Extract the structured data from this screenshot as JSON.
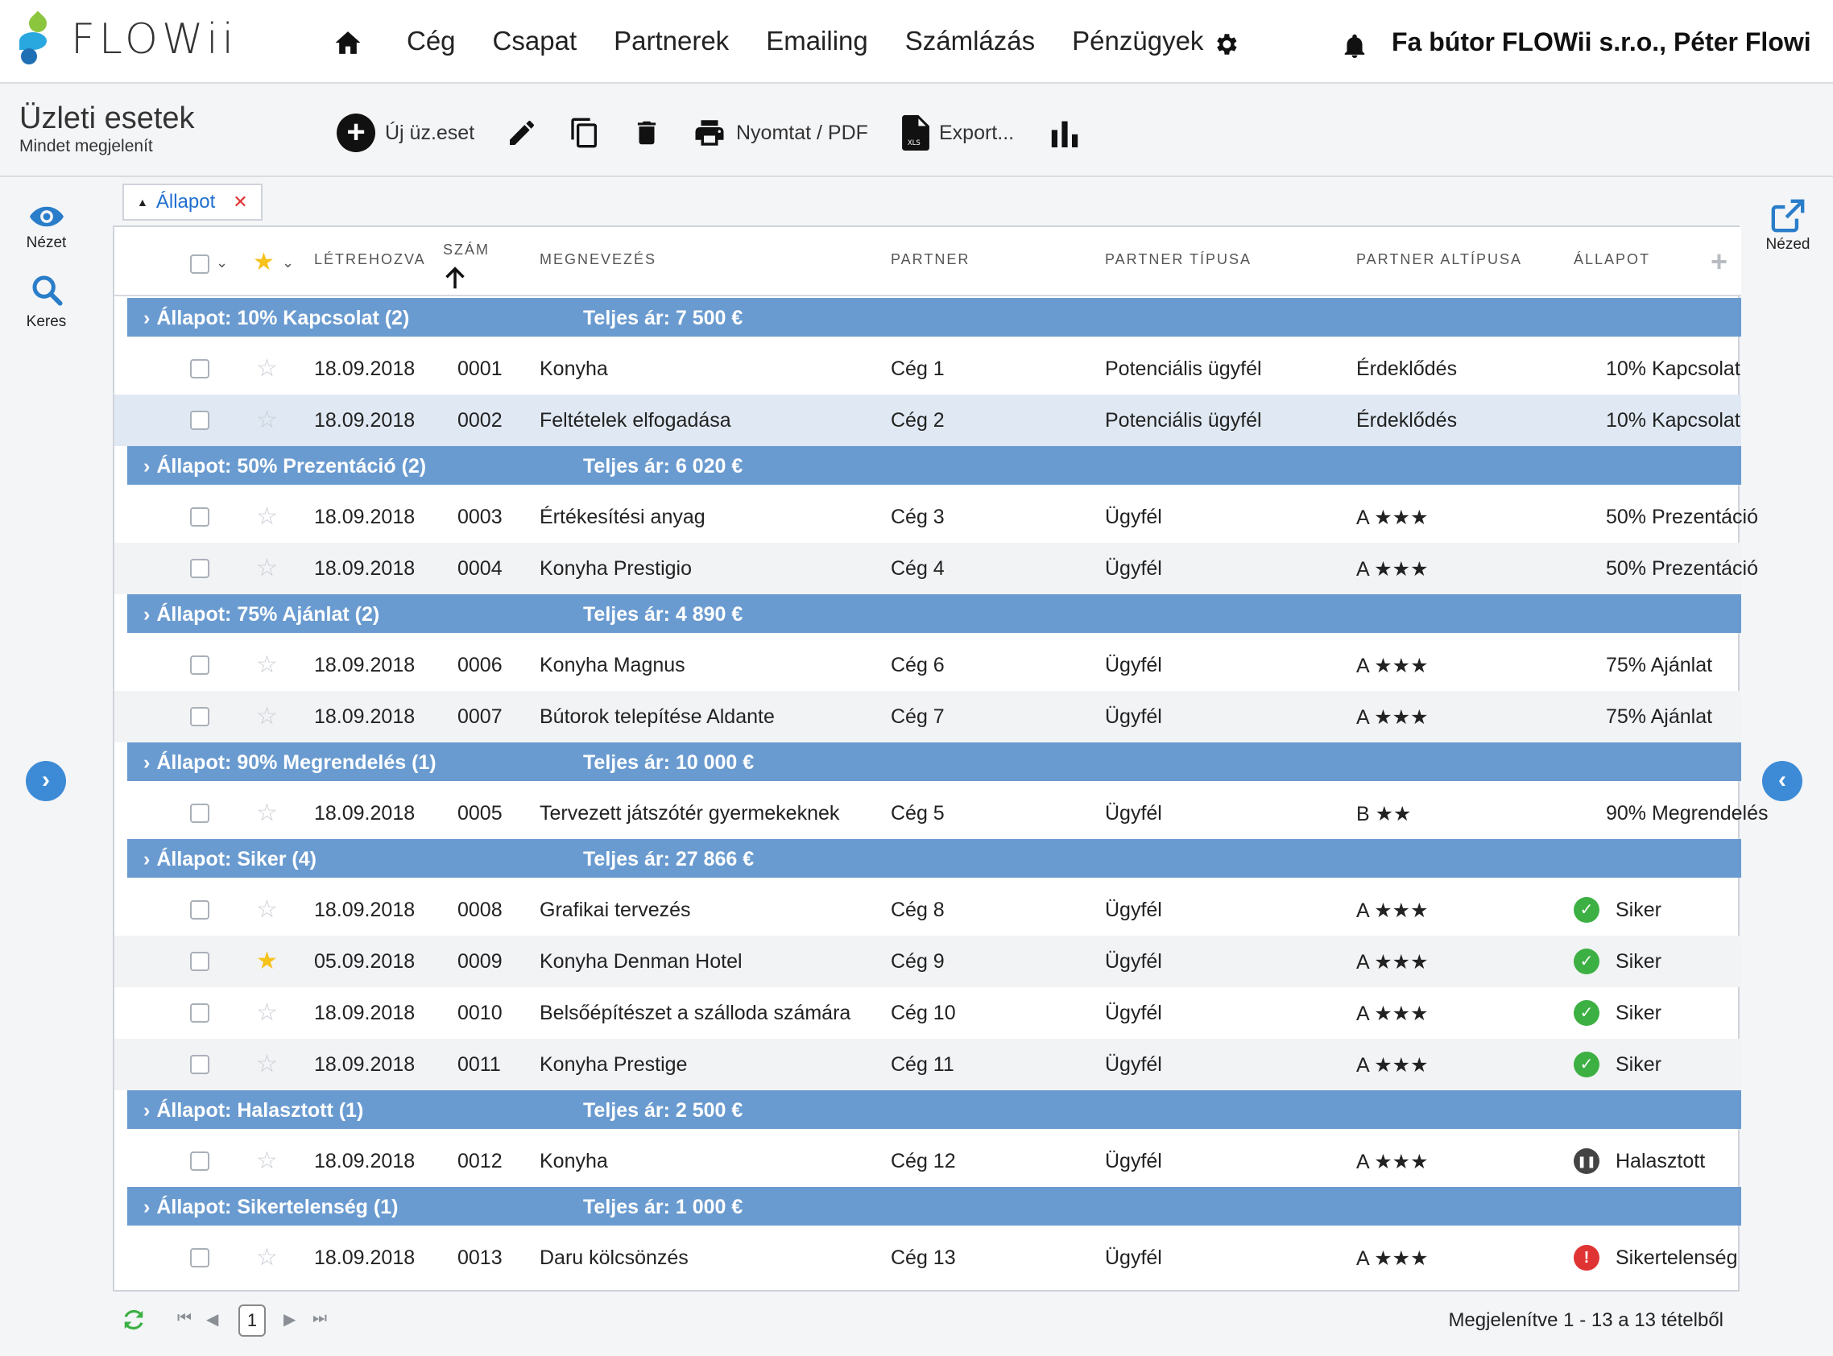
{
  "app": {
    "logo_text": "FLOWii"
  },
  "nav": {
    "items": [
      "Cég",
      "Csapat",
      "Partnerek",
      "Emailing",
      "Számlázás",
      "Pénzügyek"
    ],
    "company": "Fa bútor FLOWii s.r.o., Péter Flowi"
  },
  "toolbar": {
    "title": "Üzleti esetek",
    "subtitle": "Mindet megjelenít",
    "new_label": "Új üz.eset",
    "print_label": "Nyomtat / PDF",
    "export_label": "Export..."
  },
  "left_panel": {
    "view_label": "Nézet",
    "search_label": "Keres"
  },
  "right_panel": {
    "view_label": "Nézed"
  },
  "filter": {
    "label": "Állapot"
  },
  "columns": {
    "created": "LÉTREHOZVA",
    "number": "SZÁM",
    "name": "MEGNEVEZÉS",
    "partner": "PARTNER",
    "partner_type": "PARTNER TÍPUSA",
    "partner_subtype": "PARTNER ALTÍPUSA",
    "status": "ÁLLAPOT"
  },
  "groups": [
    {
      "label": "Állapot: 10% Kapcsolat (2)",
      "total": "Teljes ár: 7 500 €",
      "rows": [
        {
          "created": "18.09.2018",
          "number": "0001",
          "name": "Konyha",
          "partner": "Cég 1",
          "ptype": "Potenciális ügyfél",
          "psub": "Érdeklődés",
          "status": "10% Kapcsolat",
          "starred": false,
          "status_icon": ""
        },
        {
          "created": "18.09.2018",
          "number": "0002",
          "name": "Feltételek elfogadása",
          "partner": "Cég 2",
          "ptype": "Potenciális ügyfél",
          "psub": "Érdeklődés",
          "status": "10% Kapcsolat",
          "starred": false,
          "status_icon": "",
          "selected": true
        }
      ]
    },
    {
      "label": "Állapot: 50% Prezentáció (2)",
      "total": "Teljes ár: 6 020 €",
      "rows": [
        {
          "created": "18.09.2018",
          "number": "0003",
          "name": "Értékesítési anyag",
          "partner": "Cég 3",
          "ptype": "Ügyfél",
          "psub": "A ★★★",
          "status": "50% Prezentáció",
          "starred": false,
          "status_icon": ""
        },
        {
          "created": "18.09.2018",
          "number": "0004",
          "name": "Konyha Prestigio",
          "partner": "Cég 4",
          "ptype": "Ügyfél",
          "psub": "A ★★★",
          "status": "50% Prezentáció",
          "starred": false,
          "status_icon": ""
        }
      ]
    },
    {
      "label": "Állapot: 75% Ajánlat (2)",
      "total": "Teljes ár: 4 890 €",
      "rows": [
        {
          "created": "18.09.2018",
          "number": "0006",
          "name": "Konyha Magnus",
          "partner": "Cég 6",
          "ptype": "Ügyfél",
          "psub": "A ★★★",
          "status": "75% Ajánlat",
          "starred": false,
          "status_icon": ""
        },
        {
          "created": "18.09.2018",
          "number": "0007",
          "name": "Bútorok telepítése Aldante",
          "partner": "Cég 7",
          "ptype": "Ügyfél",
          "psub": "A ★★★",
          "status": "75% Ajánlat",
          "starred": false,
          "status_icon": ""
        }
      ]
    },
    {
      "label": "Állapot: 90% Megrendelés (1)",
      "total": "Teljes ár: 10 000 €",
      "rows": [
        {
          "created": "18.09.2018",
          "number": "0005",
          "name": "Tervezett játszótér gyermekeknek",
          "partner": "Cég 5",
          "ptype": "Ügyfél",
          "psub": "B ★★",
          "status": "90% Megrendelés",
          "starred": false,
          "status_icon": ""
        }
      ]
    },
    {
      "label": "Állapot: Siker (4)",
      "total": "Teljes ár: 27 866 €",
      "rows": [
        {
          "created": "18.09.2018",
          "number": "0008",
          "name": "Grafikai tervezés",
          "partner": "Cég 8",
          "ptype": "Ügyfél",
          "psub": "A ★★★",
          "status": "Siker",
          "starred": false,
          "status_icon": "success"
        },
        {
          "created": "05.09.2018",
          "number": "0009",
          "name": "Konyha Denman Hotel",
          "partner": "Cég 9",
          "ptype": "Ügyfél",
          "psub": "A ★★★",
          "status": "Siker",
          "starred": true,
          "status_icon": "success"
        },
        {
          "created": "18.09.2018",
          "number": "0010",
          "name": "Belsőépítészet a szálloda számára",
          "partner": "Cég 10",
          "ptype": "Ügyfél",
          "psub": "A ★★★",
          "status": "Siker",
          "starred": false,
          "status_icon": "success"
        },
        {
          "created": "18.09.2018",
          "number": "0011",
          "name": "Konyha Prestige",
          "partner": "Cég 11",
          "ptype": "Ügyfél",
          "psub": "A ★★★",
          "status": "Siker",
          "starred": false,
          "status_icon": "success"
        }
      ]
    },
    {
      "label": "Állapot: Halasztott (1)",
      "total": "Teljes ár: 2 500 €",
      "rows": [
        {
          "created": "18.09.2018",
          "number": "0012",
          "name": "Konyha",
          "partner": "Cég 12",
          "ptype": "Ügyfél",
          "psub": "A ★★★",
          "status": "Halasztott",
          "starred": false,
          "status_icon": "paused"
        }
      ]
    },
    {
      "label": "Állapot: Sikertelenség (1)",
      "total": "Teljes ár: 1 000 €",
      "rows": [
        {
          "created": "18.09.2018",
          "number": "0013",
          "name": "Daru kölcsönzés",
          "partner": "Cég 13",
          "ptype": "Ügyfél",
          "psub": "A ★★★",
          "status": "Sikertelenség",
          "starred": false,
          "status_icon": "failed"
        }
      ]
    }
  ],
  "footer": {
    "page": "1",
    "info": "Megjelenítve 1 - 13 a 13 tételből"
  },
  "colors": {
    "group_bar": "#6a9bd0",
    "accent": "#3d8bd6",
    "success": "#3cb043",
    "failed": "#e03333",
    "paused": "#444444",
    "star": "#f6c21b"
  }
}
